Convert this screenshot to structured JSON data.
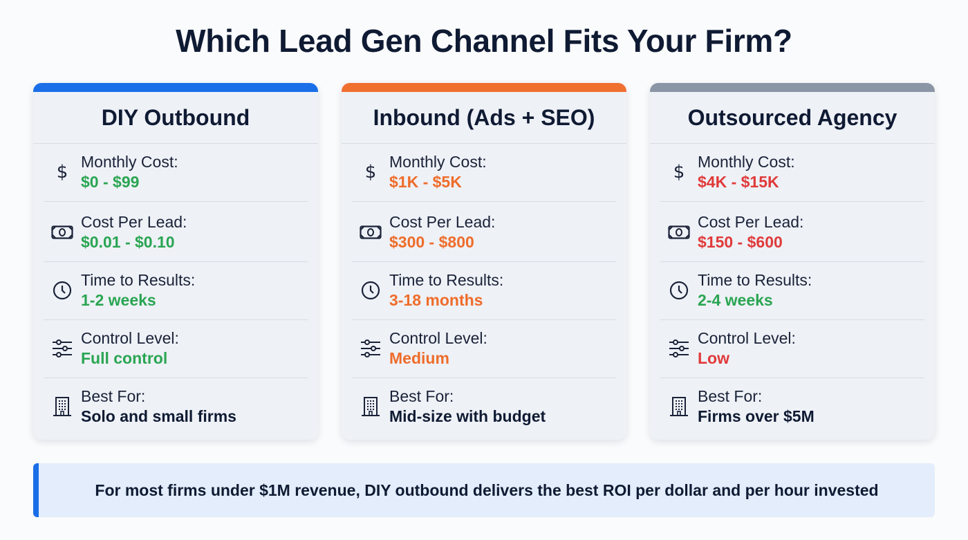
{
  "title": "Which Lead Gen Channel Fits Your Firm?",
  "colors": {
    "green": "#2aa552",
    "orange": "#ef6c2a",
    "red": "#e03a3a",
    "dark": "#0f1a33"
  },
  "cards": [
    {
      "name": "DIY Outbound",
      "accent": "#1a6fe8",
      "rows": [
        {
          "icon": "dollar-icon",
          "label": "Monthly Cost:",
          "value": "$0 - $99",
          "tone": "green"
        },
        {
          "icon": "banknote-icon",
          "label": "Cost Per Lead:",
          "value": "$0.01 - $0.10",
          "tone": "green"
        },
        {
          "icon": "clock-icon",
          "label": "Time to Results:",
          "value": "1-2 weeks",
          "tone": "green"
        },
        {
          "icon": "sliders-icon",
          "label": "Control Level:",
          "value": "Full control",
          "tone": "green"
        },
        {
          "icon": "building-icon",
          "label": "Best For:",
          "value": "Solo and small firms",
          "tone": "dark"
        }
      ]
    },
    {
      "name": "Inbound (Ads + SEO)",
      "accent": "#f07030",
      "rows": [
        {
          "icon": "dollar-icon",
          "label": "Monthly Cost:",
          "value": "$1K - $5K",
          "tone": "orange"
        },
        {
          "icon": "banknote-icon",
          "label": "Cost Per Lead:",
          "value": "$300 - $800",
          "tone": "orange"
        },
        {
          "icon": "clock-icon",
          "label": "Time to Results:",
          "value": "3-18 months",
          "tone": "orange"
        },
        {
          "icon": "sliders-icon",
          "label": "Control Level:",
          "value": "Medium",
          "tone": "orange"
        },
        {
          "icon": "building-icon",
          "label": "Best For:",
          "value": "Mid-size with budget",
          "tone": "dark"
        }
      ]
    },
    {
      "name": "Outsourced Agency",
      "accent": "#8a95a5",
      "rows": [
        {
          "icon": "dollar-icon",
          "label": "Monthly Cost:",
          "value": "$4K - $15K",
          "tone": "red"
        },
        {
          "icon": "banknote-icon",
          "label": "Cost Per Lead:",
          "value": "$150 - $600",
          "tone": "red"
        },
        {
          "icon": "clock-icon",
          "label": "Time to Results:",
          "value": "2-4 weeks",
          "tone": "green"
        },
        {
          "icon": "sliders-icon",
          "label": "Control Level:",
          "value": "Low",
          "tone": "red"
        },
        {
          "icon": "building-icon",
          "label": "Best For:",
          "value": "Firms over $5M",
          "tone": "dark"
        }
      ]
    }
  ],
  "banner": "For most firms under $1M revenue, DIY outbound delivers the best ROI per dollar and per hour invested"
}
